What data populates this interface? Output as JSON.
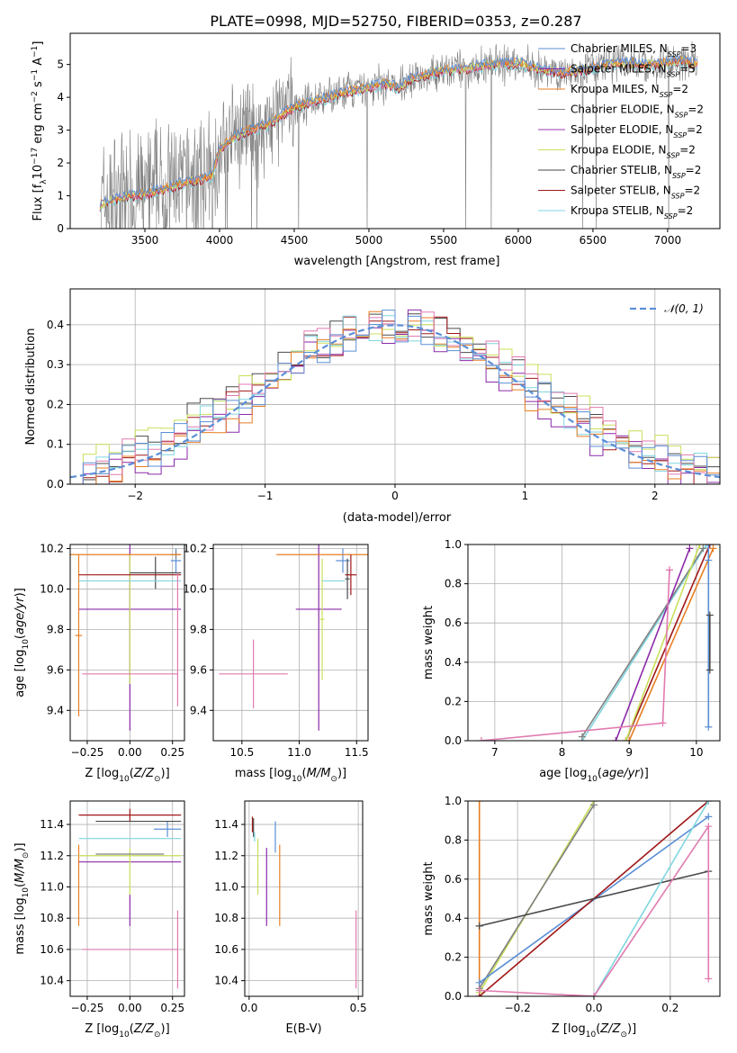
{
  "figure": {
    "title": "PLATE=0998, MJD=52750, FIBERID=0353, z=0.287"
  },
  "colors": {
    "Chabrier MILES": "#5b8fd6",
    "Salpeter MILES": "#8b2aa8",
    "Kroupa MILES": "#e87e22",
    "Chabrier ELODIE": "#808080",
    "Salpeter ELODIE": "#9a3ab0",
    "Kroupa ELODIE": "#c8e05a",
    "Chabrier STELIB": "#4a4a4a",
    "Salpeter STELIB": "#a01818",
    "Kroupa STELIB": "#7fd6e0",
    "Normal": "#5b8fd6",
    "data": "#808080",
    "pinkfit": "#e07ab0"
  },
  "chart_data": [
    {
      "id": "spectrum",
      "type": "line",
      "xlabel": "wavelength [Angstrom, rest frame]",
      "ylabel": "Flux [f",
      "ylabel_parts": [
        "Flux [f",
        "λ",
        "10",
        "−17",
        " erg cm",
        "−2",
        " s",
        "−1",
        " A",
        "−1",
        "]"
      ],
      "xlim": [
        3000,
        7350
      ],
      "ylim": [
        0,
        5.95
      ],
      "xticks": [
        3500,
        4000,
        4500,
        5000,
        5500,
        6000,
        6500,
        7000
      ],
      "yticks": [
        0,
        1,
        2,
        3,
        4,
        5
      ],
      "legend_position": "upper-right",
      "legend": [
        {
          "name": "Chabrier MILES",
          "nssp": "3"
        },
        {
          "name": "Salpeter MILES",
          "nssp": "5"
        },
        {
          "name": "Kroupa MILES",
          "nssp": "2"
        },
        {
          "name": "Chabrier ELODIE",
          "nssp": "2"
        },
        {
          "name": "Salpeter ELODIE",
          "nssp": "2"
        },
        {
          "name": "Kroupa ELODIE",
          "nssp": "2"
        },
        {
          "name": "Chabrier STELIB",
          "nssp": "2"
        },
        {
          "name": "Salpeter STELIB",
          "nssp": "2"
        },
        {
          "name": "Kroupa STELIB",
          "nssp": "2"
        }
      ],
      "nssp_label": "N",
      "nssp_sub": "SSP",
      "continuum": {
        "x": [
          3200,
          3300,
          3400,
          3500,
          3600,
          3700,
          3800,
          3900,
          3950,
          4000,
          4100,
          4200,
          4300,
          4400,
          4500,
          4600,
          4700,
          4800,
          4900,
          5000,
          5100,
          5200,
          5300,
          5400,
          5500,
          5600,
          5700,
          5800,
          5900,
          6000,
          6100,
          6200,
          6300,
          6400,
          6500,
          6600,
          6700,
          6800,
          6900,
          7000,
          7100,
          7200
        ],
        "y": [
          0.7,
          0.9,
          1.0,
          1.05,
          1.15,
          1.3,
          1.45,
          1.5,
          1.6,
          2.4,
          2.8,
          3.0,
          3.1,
          3.4,
          3.7,
          3.85,
          3.95,
          4.1,
          4.2,
          4.3,
          4.4,
          4.3,
          4.6,
          4.7,
          4.8,
          4.85,
          4.9,
          5.0,
          5.0,
          5.05,
          4.9,
          4.8,
          4.75,
          4.8,
          4.9,
          5.0,
          5.05,
          5.0,
          5.0,
          5.05,
          5.1,
          5.0
        ]
      }
    },
    {
      "id": "residual",
      "type": "step",
      "xlabel": "(data-model)/error",
      "ylabel": "Normed distribution",
      "xlim": [
        -2.5,
        2.5
      ],
      "ylim": [
        0,
        0.49
      ],
      "xticks": [
        -2,
        -1,
        0,
        1,
        2
      ],
      "yticks": [
        0.0,
        0.1,
        0.2,
        0.3,
        0.4
      ],
      "legend_position": "upper-right",
      "legend": [
        {
          "name": "𝒩(0, 1)"
        }
      ],
      "bin_width": 0.1,
      "gaussian": {
        "mean": 0,
        "sigma": 1
      }
    },
    {
      "id": "age_vs_Z",
      "type": "errorbar",
      "xlabel": "Z [log",
      "xlabel_parts": [
        "Z [log",
        "10",
        "(Z/Z",
        "⊙",
        ")]"
      ],
      "ylabel_parts": [
        "age  [log",
        "10",
        "(age/yr)]"
      ],
      "xlim": [
        -0.35,
        0.32
      ],
      "ylim": [
        9.25,
        10.22
      ],
      "xticks": [
        -0.25,
        0.0,
        0.25
      ],
      "xticklabels": [
        "−0.25",
        "0.00",
        "0.25"
      ],
      "yticks": [
        9.4,
        9.6,
        9.8,
        10.0,
        10.2
      ],
      "points": [
        {
          "model": "Chabrier MILES",
          "x": 0.27,
          "xerr": 0.03,
          "y": 10.14,
          "yerr": 0.06
        },
        {
          "model": "Salpeter MILES",
          "x": 0.0,
          "xerr": 0.3,
          "y": 9.9,
          "yerr": 0.6
        },
        {
          "model": "Kroupa MILES",
          "x": -0.3,
          "xerr": 0.02,
          "y": 9.77,
          "yerr": 0.4
        },
        {
          "model": "Chabrier ELODIE",
          "x": 0.27,
          "xerr": 0.03,
          "y": 10.17,
          "yerr": 0.02
        },
        {
          "model": "Kroupa ELODIE",
          "x": 0.0,
          "xerr": 0.0,
          "y": 9.85,
          "yerr": 0.32
        },
        {
          "model": "Chabrier STELIB",
          "x": 0.15,
          "xerr": 0.15,
          "y": 10.08,
          "yerr": 0.08
        },
        {
          "model": "Salpeter STELIB",
          "x": 0.0,
          "xerr": 0.3,
          "y": 10.07,
          "yerr": 0.0
        },
        {
          "model": "Kroupa STELIB",
          "x": 0.0,
          "xerr": 0.3,
          "y": 10.04,
          "yerr": 0.0
        },
        {
          "model": "pink",
          "x": 0.0,
          "xerr": 0.28,
          "y": 9.58,
          "yerr": 0.0
        },
        {
          "model": "pink",
          "x": 0.28,
          "xerr": 0.0,
          "y": 9.75,
          "yerr": 0.33
        },
        {
          "model": "Kroupa MILES",
          "x": -0.3,
          "xerr": 0.6,
          "y": 10.17,
          "yerr": 0.0
        }
      ]
    },
    {
      "id": "age_vs_mass",
      "type": "errorbar",
      "xlabel_parts": [
        "mass [log",
        "10",
        "(M/M",
        "⊙",
        ")]"
      ],
      "xlim": [
        10.25,
        11.6
      ],
      "ylim": [
        9.25,
        10.22
      ],
      "xticks": [
        10.5,
        11.0,
        11.5
      ],
      "xticklabels": [
        "10.5",
        "11.0",
        "11.5"
      ],
      "yticks": [
        9.4,
        9.6,
        9.8,
        10.0,
        10.2
      ],
      "points": [
        {
          "model": "Chabrier MILES",
          "x": 11.38,
          "xerr": 0.06,
          "y": 10.14,
          "yerr": 0.06
        },
        {
          "model": "Salpeter MILES",
          "x": 11.17,
          "xerr": 0.2,
          "y": 9.9,
          "yerr": 0.6
        },
        {
          "model": "Kroupa MILES",
          "x": 11.2,
          "xerr": 0.4,
          "y": 10.17,
          "yerr": 0.0
        },
        {
          "model": "Kroupa ELODIE",
          "x": 11.2,
          "xerr": 0.02,
          "y": 9.85,
          "yerr": 0.3
        },
        {
          "model": "Chabrier STELIB",
          "x": 11.42,
          "xerr": 0.02,
          "y": 10.05,
          "yerr": 0.1
        },
        {
          "model": "Salpeter STELIB",
          "x": 11.45,
          "xerr": 0.05,
          "y": 10.07,
          "yerr": 0.1
        },
        {
          "model": "Kroupa STELIB",
          "x": 11.3,
          "xerr": 0.1,
          "y": 10.04,
          "yerr": 0.0
        },
        {
          "model": "pink",
          "x": 10.6,
          "xerr": 0.3,
          "y": 9.58,
          "yerr": 0.17
        }
      ]
    },
    {
      "id": "mass_weight_vs_age",
      "type": "line",
      "xlabel_parts": [
        "age  [log",
        "10",
        "(age/yr)]"
      ],
      "ylabel": "mass weight",
      "xlim": [
        6.6,
        10.35
      ],
      "ylim": [
        0,
        1.0
      ],
      "xticks": [
        7,
        8,
        9,
        10
      ],
      "yticks": [
        0.0,
        0.2,
        0.4,
        0.6,
        0.8,
        1.0
      ],
      "series": [
        {
          "model": "Kroupa STELIB",
          "x": [
            8.3,
            10.15
          ],
          "y": [
            0.0,
            1.0
          ]
        },
        {
          "model": "Chabrier ELODIE",
          "x": [
            8.3,
            10.1
          ],
          "y": [
            0.02,
            0.98
          ]
        },
        {
          "model": "Salpeter MILES",
          "x": [
            8.8,
            9.9
          ],
          "y": [
            0.0,
            0.98
          ]
        },
        {
          "model": "Salpeter STELIB",
          "x": [
            8.95,
            10.2
          ],
          "y": [
            0.0,
            1.0
          ]
        },
        {
          "model": "Kroupa MILES",
          "x": [
            9.0,
            10.25
          ],
          "y": [
            0.0,
            0.98
          ]
        },
        {
          "model": "Kroupa ELODIE",
          "x": [
            8.95,
            10.05
          ],
          "y": [
            0.0,
            1.0
          ]
        },
        {
          "model": "Chabrier MILES",
          "x": [
            10.18,
            10.18,
            10.18
          ],
          "y": [
            0.07,
            0.92,
            1.0
          ]
        },
        {
          "model": "Chabrier STELIB",
          "x": [
            10.2,
            10.2
          ],
          "y": [
            0.36,
            0.64
          ]
        },
        {
          "model": "pink",
          "x": [
            6.8,
            9.5,
            9.6,
            9.6
          ],
          "y": [
            0.0,
            0.09,
            0.87,
            0.87
          ]
        }
      ]
    },
    {
      "id": "mass_vs_Z",
      "type": "errorbar",
      "xlabel_parts": [
        "Z [log",
        "10",
        "(Z/Z",
        "⊙",
        ")]"
      ],
      "ylabel_parts": [
        "mass [log",
        "10",
        "(M/M",
        "⊙",
        ")]"
      ],
      "xlim": [
        -0.35,
        0.32
      ],
      "ylim": [
        10.3,
        11.55
      ],
      "xticks": [
        -0.25,
        0.0,
        0.25
      ],
      "xticklabels": [
        "−0.25",
        "0.00",
        "0.25"
      ],
      "yticks": [
        10.4,
        10.6,
        10.8,
        11.0,
        11.2,
        11.4
      ],
      "points": [
        {
          "model": "Chabrier MILES",
          "x": 0.22,
          "xerr": 0.08,
          "y": 11.37,
          "yerr": 0.05
        },
        {
          "model": "Salpeter MILES",
          "x": 0.0,
          "xerr": 0.3,
          "y": 11.16,
          "yerr": 0.0
        },
        {
          "model": "Salpeter MILES",
          "x": 0.0,
          "xerr": 0.0,
          "y": 10.85,
          "yerr": 0.1
        },
        {
          "model": "Kroupa MILES",
          "x": -0.3,
          "xerr": 0.0,
          "y": 11.01,
          "yerr": 0.26
        },
        {
          "model": "Kroupa ELODIE",
          "x": 0.0,
          "xerr": 0.0,
          "y": 11.1,
          "yerr": 0.15
        },
        {
          "model": "Kroupa ELODIE",
          "x": 0.0,
          "xerr": 0.3,
          "y": 11.2,
          "yerr": 0.0
        },
        {
          "model": "Chabrier STELIB",
          "x": 0.05,
          "xerr": 0.25,
          "y": 11.42,
          "yerr": 0.0
        },
        {
          "model": "Salpeter STELIB",
          "x": 0.0,
          "xerr": 0.3,
          "y": 11.46,
          "yerr": 0.04
        },
        {
          "model": "Kroupa STELIB",
          "x": 0.0,
          "xerr": 0.3,
          "y": 11.31,
          "yerr": 0.0
        },
        {
          "model": "pink",
          "x": 0.0,
          "xerr": 0.28,
          "y": 10.6,
          "yerr": 0.0
        },
        {
          "model": "pink",
          "x": 0.28,
          "xerr": 0.0,
          "y": 10.6,
          "yerr": 0.25
        },
        {
          "model": "Chabrier ELODIE",
          "x": 0.0,
          "xerr": 0.2,
          "y": 11.21,
          "yerr": 0.0
        }
      ]
    },
    {
      "id": "mass_vs_ebv",
      "type": "errorbar",
      "xlabel": "E(B-V)",
      "xlim": [
        -0.02,
        0.52
      ],
      "ylim": [
        10.3,
        11.55
      ],
      "xticks": [
        0.0,
        0.5
      ],
      "xticklabels": [
        "0.0",
        "0.5"
      ],
      "yticks": [
        10.4,
        10.6,
        10.8,
        11.0,
        11.2,
        11.4
      ],
      "points": [
        {
          "model": "Chabrier MILES",
          "x": 0.12,
          "xerr": 0.0,
          "y": 11.32,
          "yerr": 0.1
        },
        {
          "model": "Chabrier STELIB",
          "x": 0.02,
          "xerr": 0.0,
          "y": 11.38,
          "yerr": 0.06
        },
        {
          "model": "Salpeter STELIB",
          "x": 0.015,
          "xerr": 0.0,
          "y": 11.4,
          "yerr": 0.05
        },
        {
          "model": "Kroupa STELIB",
          "x": 0.025,
          "xerr": 0.0,
          "y": 11.32,
          "yerr": 0.03
        },
        {
          "model": "Kroupa ELODIE",
          "x": 0.04,
          "xerr": 0.0,
          "y": 11.13,
          "yerr": 0.18
        },
        {
          "model": "Salpeter MILES",
          "x": 0.08,
          "xerr": 0.0,
          "y": 11.0,
          "yerr": 0.25
        },
        {
          "model": "Kroupa MILES",
          "x": 0.14,
          "xerr": 0.0,
          "y": 11.01,
          "yerr": 0.26
        },
        {
          "model": "pink",
          "x": 0.49,
          "xerr": 0.0,
          "y": 10.6,
          "yerr": 0.25
        }
      ]
    },
    {
      "id": "mass_weight_vs_Z",
      "type": "line",
      "xlabel_parts": [
        "Z [log",
        "10",
        "(Z/Z",
        "⊙",
        ")]"
      ],
      "ylabel": "mass weight",
      "xlim": [
        -0.33,
        0.33
      ],
      "ylim": [
        0,
        1.0
      ],
      "xticks": [
        -0.2,
        0.0,
        0.2
      ],
      "xticklabels": [
        "−0.2",
        "0.0",
        "0.2"
      ],
      "yticks": [
        0.0,
        0.2,
        0.4,
        0.6,
        0.8,
        1.0
      ],
      "series": [
        {
          "model": "Kroupa MILES",
          "x": [
            -0.3,
            -0.3
          ],
          "y": [
            0.0,
            1.0
          ]
        },
        {
          "model": "Kroupa ELODIE",
          "x": [
            -0.3,
            0.0
          ],
          "y": [
            0.02,
            1.0
          ]
        },
        {
          "model": "Chabrier ELODIE",
          "x": [
            -0.3,
            0.0
          ],
          "y": [
            0.04,
            0.98
          ]
        },
        {
          "model": "Chabrier MILES",
          "x": [
            -0.3,
            0.3
          ],
          "y": [
            0.07,
            0.92
          ]
        },
        {
          "model": "Salpeter STELIB",
          "x": [
            -0.3,
            0.3
          ],
          "y": [
            0.0,
            1.0
          ]
        },
        {
          "model": "Chabrier STELIB",
          "x": [
            -0.3,
            0.3
          ],
          "y": [
            0.36,
            0.64
          ]
        },
        {
          "model": "Kroupa STELIB",
          "x": [
            0.0,
            0.3
          ],
          "y": [
            0.0,
            1.0
          ]
        },
        {
          "model": "pink",
          "x": [
            -0.3,
            0.0,
            0.3,
            0.3
          ],
          "y": [
            0.03,
            0.0,
            0.87,
            0.09
          ]
        }
      ]
    }
  ]
}
